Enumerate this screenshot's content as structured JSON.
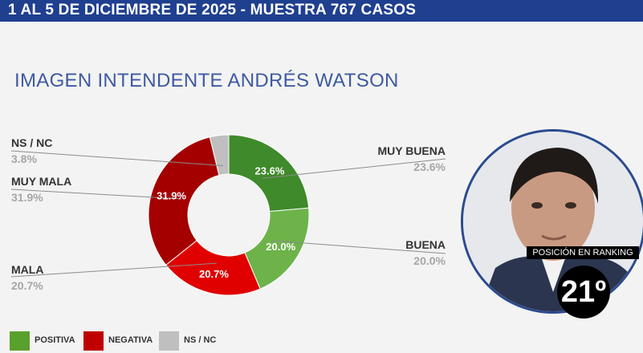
{
  "header": {
    "text": "1 AL 5 DE DICIEMBRE DE 2025 - MUESTRA 767 CASOS"
  },
  "title": "IMAGEN INTENDENTE  ANDRÉS WATSON",
  "ranking": {
    "label": "POSICIÓN EN RANKING",
    "position": "21º"
  },
  "photo": {
    "icon": "person-portrait-icon"
  },
  "legend": [
    {
      "label": "POSITIVA",
      "color": "#5aa02c"
    },
    {
      "label": "NEGATIVA",
      "color": "#c00000"
    },
    {
      "label": "NS / NC",
      "color": "#bfbfbf"
    }
  ],
  "chart_data": {
    "type": "pie",
    "subtype": "donut",
    "title": "IMAGEN INTENDENTE  ANDRÉS WATSON",
    "categories": [
      "MUY BUENA",
      "BUENA",
      "MALA",
      "MUY MALA",
      "NS / NC"
    ],
    "values": [
      23.6,
      20.0,
      20.7,
      31.9,
      3.8
    ],
    "value_labels": [
      "23.6%",
      "20.0%",
      "20.7%",
      "31.9%",
      "3.8%"
    ],
    "inner_labels": [
      "23.6%",
      "20.0%",
      "20.7%",
      "31.9%",
      ""
    ],
    "colors": [
      "#3f8a2a",
      "#6db34a",
      "#e00000",
      "#a40000",
      "#bfbfbf"
    ],
    "start": "12 o'clock",
    "direction": "clockwise"
  }
}
